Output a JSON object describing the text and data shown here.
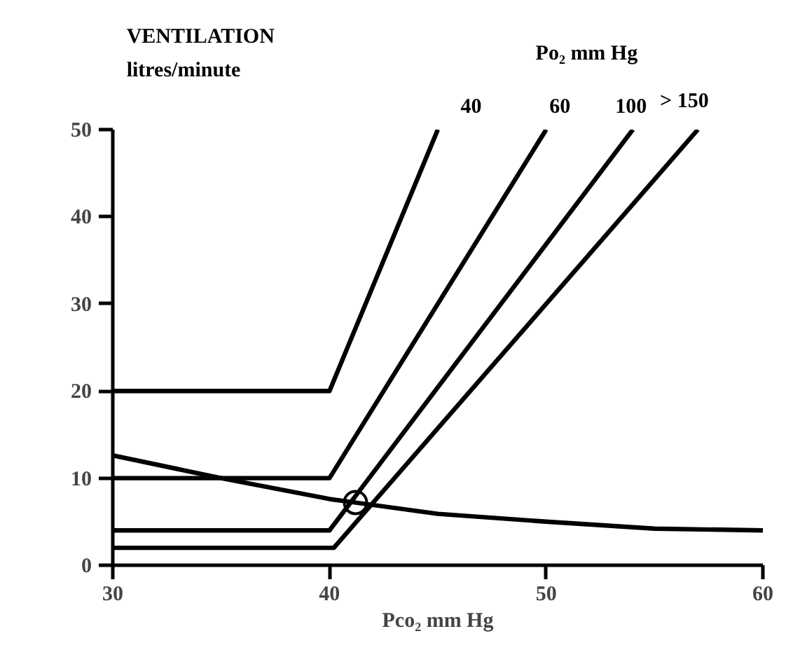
{
  "chart_data": {
    "type": "line",
    "ylabel": "VENTILATION\nlitres/minute",
    "xlabel": "Pco₂ mm Hg",
    "legend_title": "Po₂ mm Hg",
    "xlim": [
      30,
      60
    ],
    "ylim": [
      0,
      50
    ],
    "xticks": [
      30,
      40,
      50,
      60
    ],
    "yticks": [
      0,
      10,
      20,
      30,
      40,
      50
    ],
    "grid": false,
    "legend": false,
    "marker": "none",
    "line_style": "solid",
    "series": [
      {
        "name": "40",
        "color": "#000000",
        "x": [
          30,
          40,
          45
        ],
        "values": [
          20,
          20,
          50
        ]
      },
      {
        "name": "60",
        "color": "#000000",
        "x": [
          30,
          40,
          50
        ],
        "values": [
          10,
          10,
          50
        ]
      },
      {
        "name": "100",
        "color": "#000000",
        "x": [
          30,
          40,
          54
        ],
        "values": [
          4,
          4,
          50
        ]
      },
      {
        "name": "> 150",
        "color": "#000000",
        "x": [
          30,
          40.2,
          57
        ],
        "values": [
          2,
          2,
          50
        ]
      },
      {
        "color": "#000000",
        "x": [
          30,
          35,
          40,
          45,
          50,
          55,
          60
        ],
        "values": [
          12.6,
          10,
          7.6,
          5.9,
          5,
          4.2,
          4
        ]
      },
      {
        "type": "scatter",
        "marker": "circle",
        "color": "#000000",
        "x": [
          41.2
        ],
        "values": [
          7.2
        ]
      }
    ]
  }
}
